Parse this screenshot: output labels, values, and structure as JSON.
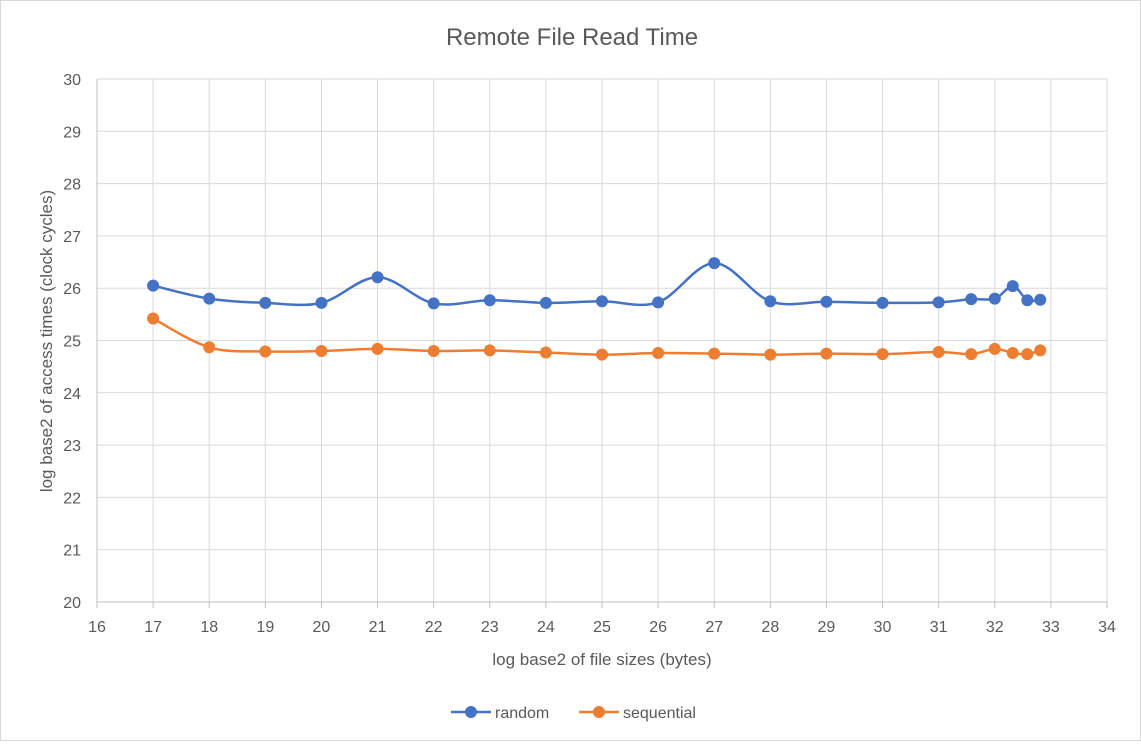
{
  "chart_data": {
    "type": "scatter",
    "title": "Remote File Read Time",
    "xlabel": "log base2 of file sizes (bytes)",
    "ylabel": "log base2 of access times (clock cycles)",
    "xlim": [
      16,
      34
    ],
    "ylim": [
      20,
      30
    ],
    "x_ticks": [
      "16",
      "17",
      "18",
      "19",
      "20",
      "21",
      "22",
      "23",
      "24",
      "25",
      "26",
      "27",
      "28",
      "29",
      "30",
      "31",
      "32",
      "33",
      "34"
    ],
    "y_ticks": [
      "20",
      "21",
      "22",
      "23",
      "24",
      "25",
      "26",
      "27",
      "28",
      "29",
      "30"
    ],
    "grid": true,
    "smooth_lines": true,
    "legend_position": "bottom",
    "series": [
      {
        "name": "random",
        "color": "#4472C4",
        "points": [
          [
            17,
            26.05
          ],
          [
            18,
            25.8
          ],
          [
            19,
            25.72
          ],
          [
            20,
            25.72
          ],
          [
            21,
            26.21
          ],
          [
            22,
            25.71
          ],
          [
            23,
            25.77
          ],
          [
            24,
            25.72
          ],
          [
            25,
            25.75
          ],
          [
            26,
            25.73
          ],
          [
            27,
            26.48
          ],
          [
            28,
            25.75
          ],
          [
            29,
            25.74
          ],
          [
            30,
            25.72
          ],
          [
            31,
            25.73
          ],
          [
            31.58,
            25.79
          ],
          [
            32,
            25.8
          ],
          [
            32.32,
            26.04
          ],
          [
            32.58,
            25.77
          ],
          [
            32.81,
            25.78
          ]
        ]
      },
      {
        "name": "sequential",
        "color": "#ED7D31",
        "points": [
          [
            17,
            25.42
          ],
          [
            18,
            24.87
          ],
          [
            19,
            24.79
          ],
          [
            20,
            24.8
          ],
          [
            21,
            24.84
          ],
          [
            22,
            24.8
          ],
          [
            23,
            24.81
          ],
          [
            24,
            24.77
          ],
          [
            25,
            24.73
          ],
          [
            26,
            24.76
          ],
          [
            27,
            24.75
          ],
          [
            28,
            24.73
          ],
          [
            29,
            24.75
          ],
          [
            30,
            24.74
          ],
          [
            31,
            24.78
          ],
          [
            31.58,
            24.74
          ],
          [
            32,
            24.84
          ],
          [
            32.32,
            24.76
          ],
          [
            32.58,
            24.74
          ],
          [
            32.81,
            24.81
          ]
        ]
      }
    ]
  }
}
